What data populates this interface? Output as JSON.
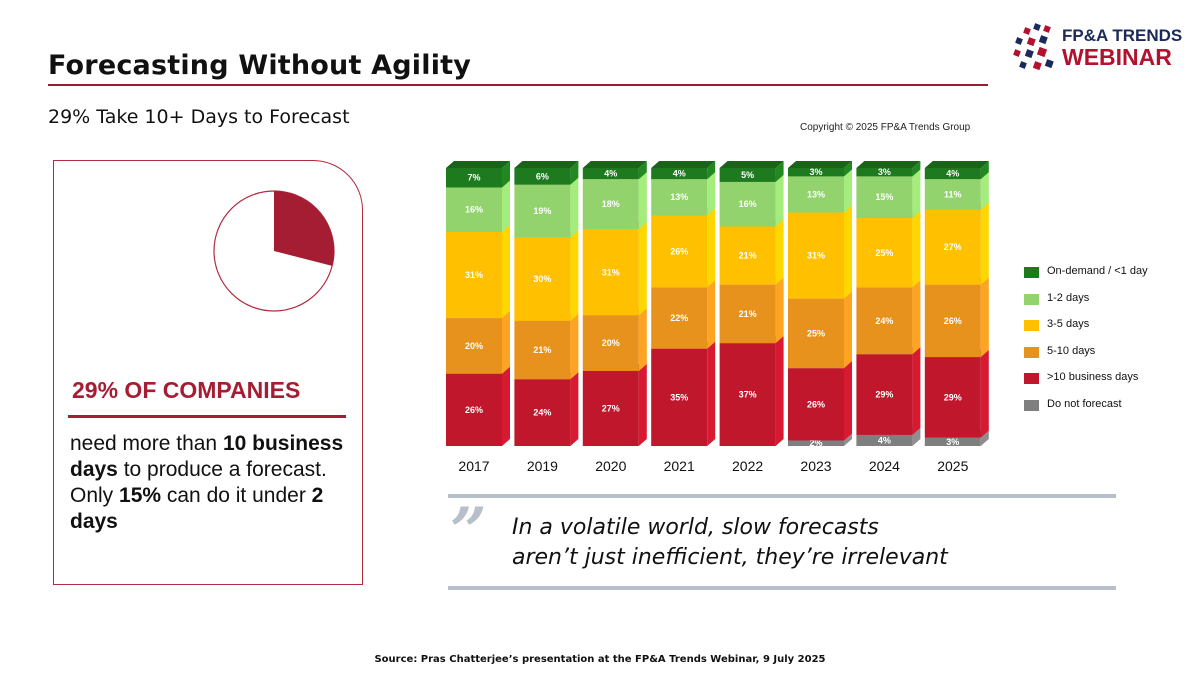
{
  "header": {
    "title": "Forecasting Without Agility",
    "subtitle": "29% Take 10+ Days to Forecast",
    "logo_line1": "FP&A TRENDS",
    "logo_line2": "WEBINAR"
  },
  "copyright": "Copyright © 2025 FP&A Trends Group",
  "card": {
    "pie_fraction": 0.29,
    "headline": "29% OF COMPANIES",
    "t1": "need more than ",
    "b1": "10 business days",
    "t2": " to produce a forecast. Only ",
    "b2": "15%",
    "t3": " can do it under ",
    "b3": "2 days"
  },
  "quote": {
    "mark": "”",
    "line1": "In a volatile world, slow forecasts",
    "line2": "aren’t just inefficient, they’re irrelevant"
  },
  "source": "Source: Pras Chatterjee’s presentation at the FP&A Trends Webinar, 9 July 2025",
  "chart_data": {
    "type": "bar",
    "stacked": true,
    "categories": [
      "2017",
      "2019",
      "2020",
      "2021",
      "2022",
      "2023",
      "2024",
      "2025"
    ],
    "legend_position": "right",
    "series": [
      {
        "name": "Do not forecast",
        "color": "#7f7f7f",
        "values": [
          0,
          0,
          0,
          0,
          0,
          2,
          4,
          3
        ],
        "labels": [
          "",
          "",
          "",
          "",
          "",
          "2%",
          "4%",
          "3%"
        ]
      },
      {
        "name": ">10 business days",
        "color": "#c0172c",
        "values": [
          26,
          24,
          27,
          35,
          37,
          26,
          29,
          29
        ],
        "labels": [
          "26%",
          "24%",
          "27%",
          "35%",
          "37%",
          "26%",
          "29%",
          "29%"
        ]
      },
      {
        "name": "5-10 days",
        "color": "#e8921e",
        "values": [
          20,
          21,
          20,
          22,
          21,
          25,
          24,
          26
        ],
        "labels": [
          "20%",
          "21%",
          "20%",
          "22%",
          "21%",
          "25%",
          "24%",
          "26%"
        ]
      },
      {
        "name": "3-5 days",
        "color": "#ffc000",
        "values": [
          31,
          30,
          31,
          26,
          21,
          31,
          25,
          27
        ],
        "labels": [
          "31%",
          "30%",
          "31%",
          "26%",
          "21%",
          "31%",
          "25%",
          "27%"
        ]
      },
      {
        "name": "1-2 days",
        "color": "#92d36e",
        "values": [
          16,
          19,
          18,
          13,
          16,
          13,
          15,
          11
        ],
        "labels": [
          "16%",
          "19%",
          "18%",
          "13%",
          "16%",
          "13%",
          "15%",
          "11%"
        ]
      },
      {
        "name": "On-demand / <1 day",
        "color": "#1e7a1e",
        "values": [
          7,
          6,
          4,
          4,
          5,
          3,
          3,
          4
        ],
        "labels": [
          "7%",
          "6%",
          "4%",
          "4%",
          "5%",
          "3%",
          "3%",
          "4%"
        ]
      }
    ],
    "legend_order": [
      "On-demand / <1 day",
      "1-2 days",
      "3-5 days",
      "5-10 days",
      ">10 business days",
      "Do not forecast"
    ],
    "ylim": [
      0,
      100
    ]
  }
}
